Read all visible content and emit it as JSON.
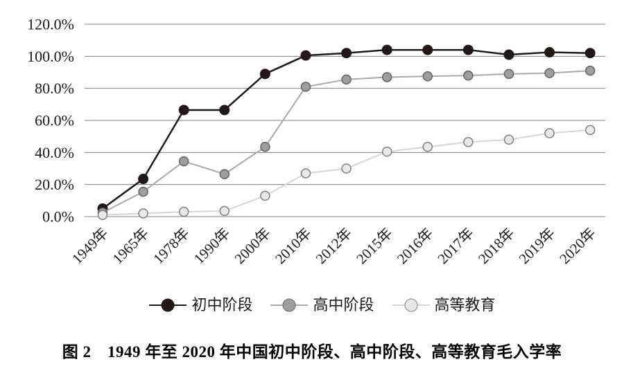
{
  "figure": {
    "caption": "图 2　1949 年至 2020 年中国初中阶段、高中阶段、高等教育毛入学率"
  },
  "chart_data": {
    "type": "line",
    "title": "",
    "xlabel": "",
    "ylabel": "",
    "categories": [
      "1949年",
      "1965年",
      "1978年",
      "1990年",
      "2000年",
      "2010年",
      "2012年",
      "2015年",
      "2016年",
      "2017年",
      "2018年",
      "2019年",
      "2020年"
    ],
    "series": [
      {
        "name": "初中阶段",
        "line_color": "#1a1a1a",
        "marker_fill": "#231815",
        "marker_stroke": "#231815",
        "values": [
          5.0,
          23.5,
          66.5,
          66.5,
          89.0,
          100.5,
          102.0,
          104.0,
          104.0,
          104.0,
          101.0,
          102.5,
          102.0
        ]
      },
      {
        "name": "高中阶段",
        "line_color": "#a9a9a9",
        "marker_fill": "#9e9e9e",
        "marker_stroke": "#636363",
        "values": [
          2.5,
          15.5,
          34.5,
          26.5,
          43.5,
          81.0,
          85.5,
          87.0,
          87.5,
          88.0,
          89.0,
          89.5,
          91.0
        ]
      },
      {
        "name": "高等教育",
        "line_color": "#d6d6d6",
        "marker_fill": "#e8e8e8",
        "marker_stroke": "#7f7f7f",
        "values": [
          1.0,
          2.0,
          3.0,
          3.5,
          13.0,
          27.0,
          30.0,
          40.5,
          43.5,
          46.5,
          48.0,
          52.0,
          54.0
        ]
      }
    ],
    "y_ticks": [
      "0.0%",
      "20.0%",
      "40.0%",
      "60.0%",
      "80.0%",
      "100.0%",
      "120.0%"
    ],
    "ylim": [
      0,
      120
    ],
    "y_tick_step": 20,
    "grid": true,
    "grid_color": "#7f7f7f",
    "text_color": "#1a1a1a",
    "legend_position": "bottom"
  }
}
